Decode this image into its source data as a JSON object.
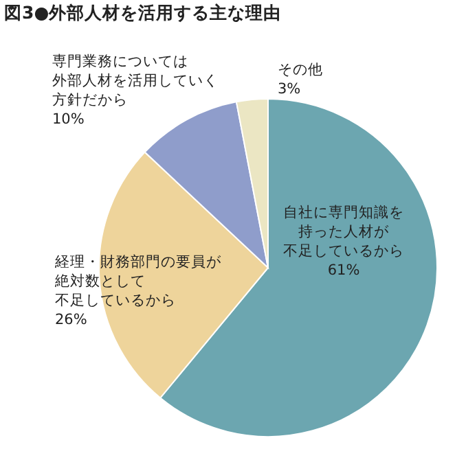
{
  "chart_data": {
    "type": "pie",
    "title": "図3●外部人材を活用する主な理由",
    "categories": [
      "自社に専門知識を持った人材が不足しているから",
      "経理・財務部門の要員が絶対数として不足しているから",
      "専門業務については外部人材を活用していく方針だから",
      "その他"
    ],
    "values": [
      61,
      26,
      10,
      3
    ],
    "value_labels": [
      "61%",
      "26%",
      "10%",
      "3%"
    ],
    "colors": [
      "#6ca6b0",
      "#eed49b",
      "#8f9dcb",
      "#ebe6c3"
    ]
  }
}
